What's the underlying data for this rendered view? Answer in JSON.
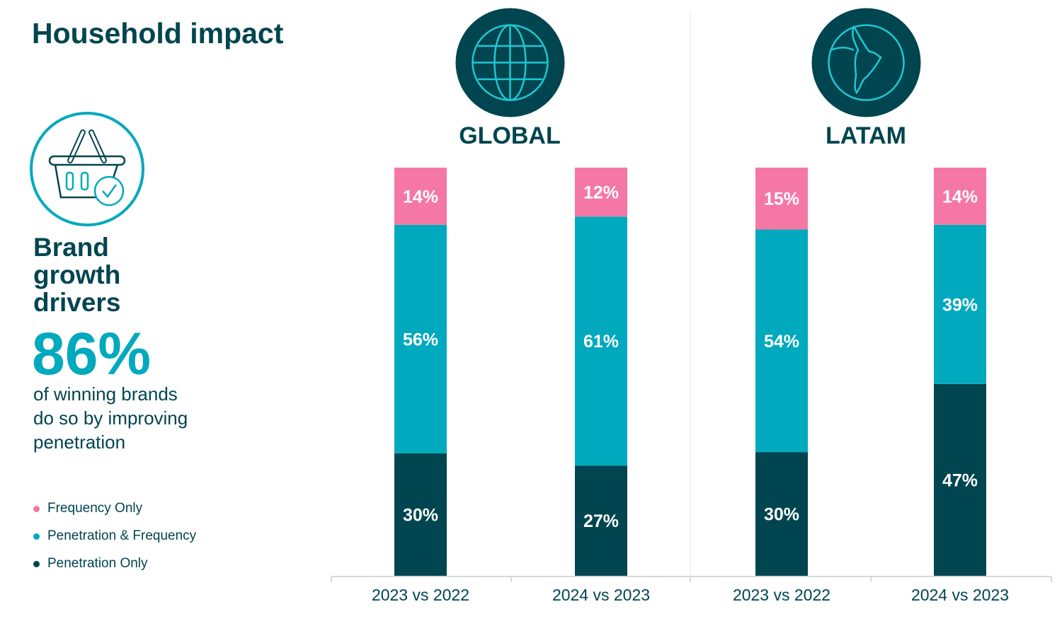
{
  "title": "Household impact",
  "heading": [
    "Brand",
    "growth",
    "drivers"
  ],
  "big_stat": "86%",
  "description": [
    "of winning brands",
    "do so by improving",
    "penetration"
  ],
  "icons": {
    "basket": "shopping-basket-check-icon",
    "global": "globe-icon",
    "latam": "south-america-icon"
  },
  "colors": {
    "frequency_only": "#f577a5",
    "penetration_frequency": "#00a9bd",
    "penetration_only": "#00454f"
  },
  "chart_data": {
    "type": "bar",
    "stacked": true,
    "groups": [
      "GLOBAL",
      "LATAM"
    ],
    "categories": [
      "2023 vs 2022",
      "2024 vs 2023",
      "2023 vs 2022",
      "2024 vs 2023"
    ],
    "category_group": [
      "GLOBAL",
      "GLOBAL",
      "LATAM",
      "LATAM"
    ],
    "series": [
      {
        "name": "Penetration Only",
        "values": [
          30,
          27,
          30,
          47
        ],
        "color": "#00454f"
      },
      {
        "name": "Penetration & Frequency",
        "values": [
          56,
          61,
          54,
          39
        ],
        "color": "#00a9bd"
      },
      {
        "name": "Frequency Only",
        "values": [
          14,
          12,
          15,
          14
        ],
        "color": "#f577a5"
      }
    ],
    "ylim": [
      0,
      100
    ],
    "legend": "left",
    "grid": false
  }
}
